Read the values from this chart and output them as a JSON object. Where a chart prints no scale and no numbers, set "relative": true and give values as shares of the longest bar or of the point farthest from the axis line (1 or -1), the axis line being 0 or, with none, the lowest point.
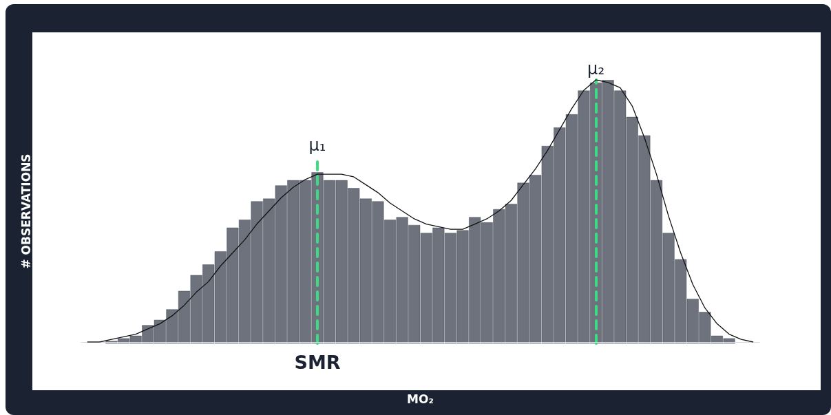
{
  "chart_data": [
    {
      "type": "bar",
      "relative": true,
      "xlabel": "MO₂",
      "ylabel": "# OBSERVATIONS",
      "categories": [
        null,
        null,
        null,
        null,
        null,
        null,
        null,
        null,
        null,
        null,
        null,
        null,
        null,
        null,
        null,
        null,
        null,
        null,
        null,
        null,
        null,
        null,
        null,
        null,
        null,
        null,
        null,
        null,
        null,
        null,
        null,
        null,
        null,
        null,
        null,
        null,
        null,
        null,
        null,
        null,
        null,
        null,
        null,
        null,
        null,
        null,
        null,
        null,
        null,
        null,
        null,
        null
      ],
      "series": [
        {
          "color": "#6d727d",
          "values": [
            0.01,
            0.02,
            0.03,
            0.07,
            0.09,
            0.13,
            0.2,
            0.26,
            0.3,
            0.35,
            0.44,
            0.47,
            0.54,
            0.55,
            0.6,
            0.62,
            0.62,
            0.65,
            0.62,
            0.62,
            0.59,
            0.55,
            0.54,
            0.47,
            0.48,
            0.45,
            0.42,
            0.44,
            0.42,
            0.43,
            0.48,
            0.46,
            0.51,
            0.53,
            0.61,
            0.64,
            0.75,
            0.82,
            0.87,
            0.96,
            0.99,
            1.0,
            0.96,
            0.86,
            0.79,
            0.62,
            0.42,
            0.32,
            0.17,
            0.12,
            0.03,
            0.02
          ]
        }
      ],
      "annotations": [
        "μ₁",
        "μ₂",
        "SMR"
      ]
    },
    {
      "type": "line",
      "relative": true,
      "categories": [
        null,
        null,
        null,
        null,
        null,
        null,
        null,
        null,
        null,
        null,
        null,
        null,
        null,
        null,
        null,
        null,
        null,
        null,
        null,
        null,
        null,
        null,
        null,
        null,
        null,
        null,
        null,
        null,
        null,
        null,
        null,
        null,
        null,
        null,
        null,
        null,
        null,
        null,
        null,
        null,
        null,
        null,
        null,
        null,
        null,
        null,
        null,
        null,
        null,
        null,
        null,
        null,
        null,
        null,
        null,
        null
      ],
      "series": [
        {
          "color": "#111111",
          "values": [
            0,
            0,
            0.01,
            0.02,
            0.03,
            0.05,
            0.07,
            0.1,
            0.14,
            0.19,
            0.23,
            0.29,
            0.34,
            0.39,
            0.45,
            0.5,
            0.55,
            0.59,
            0.62,
            0.64,
            0.64,
            0.64,
            0.63,
            0.6,
            0.57,
            0.53,
            0.5,
            0.47,
            0.45,
            0.44,
            0.43,
            0.43,
            0.45,
            0.47,
            0.5,
            0.54,
            0.6,
            0.66,
            0.73,
            0.81,
            0.89,
            0.96,
            1.0,
            0.99,
            0.97,
            0.9,
            0.78,
            0.64,
            0.48,
            0.34,
            0.22,
            0.13,
            0.07,
            0.03,
            0.01,
            0
          ]
        }
      ],
      "marker": "none",
      "line_style": "solid"
    }
  ]
}
